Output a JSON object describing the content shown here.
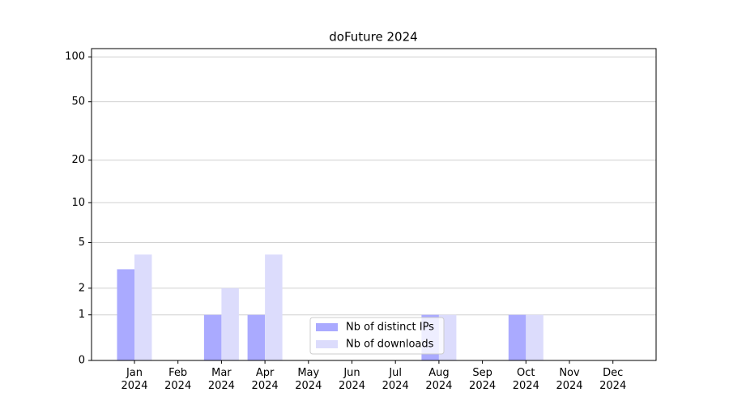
{
  "chart_data": {
    "type": "bar",
    "title": "doFuture 2024",
    "categories": [
      "Jan\n2024",
      "Feb\n2024",
      "Mar\n2024",
      "Apr\n2024",
      "May\n2024",
      "Jun\n2024",
      "Jul\n2024",
      "Aug\n2024",
      "Sep\n2024",
      "Oct\n2024",
      "Nov\n2024",
      "Dec\n2024"
    ],
    "series": [
      {
        "name": "Nb of distinct IPs",
        "color": "#aaaaff",
        "values": [
          3,
          0,
          1,
          1,
          0,
          0,
          0,
          1,
          0,
          1,
          0,
          0
        ]
      },
      {
        "name": "Nb of downloads",
        "color": "#dcdcfc",
        "values": [
          4,
          0,
          2,
          4,
          0,
          0,
          0,
          1,
          0,
          1,
          0,
          0
        ]
      }
    ],
    "yscale": "log1p",
    "ylim": [
      0,
      113.5
    ],
    "yticks": [
      0,
      1,
      2,
      5,
      10,
      20,
      50,
      100
    ],
    "grid": true,
    "legend": "lower center"
  }
}
